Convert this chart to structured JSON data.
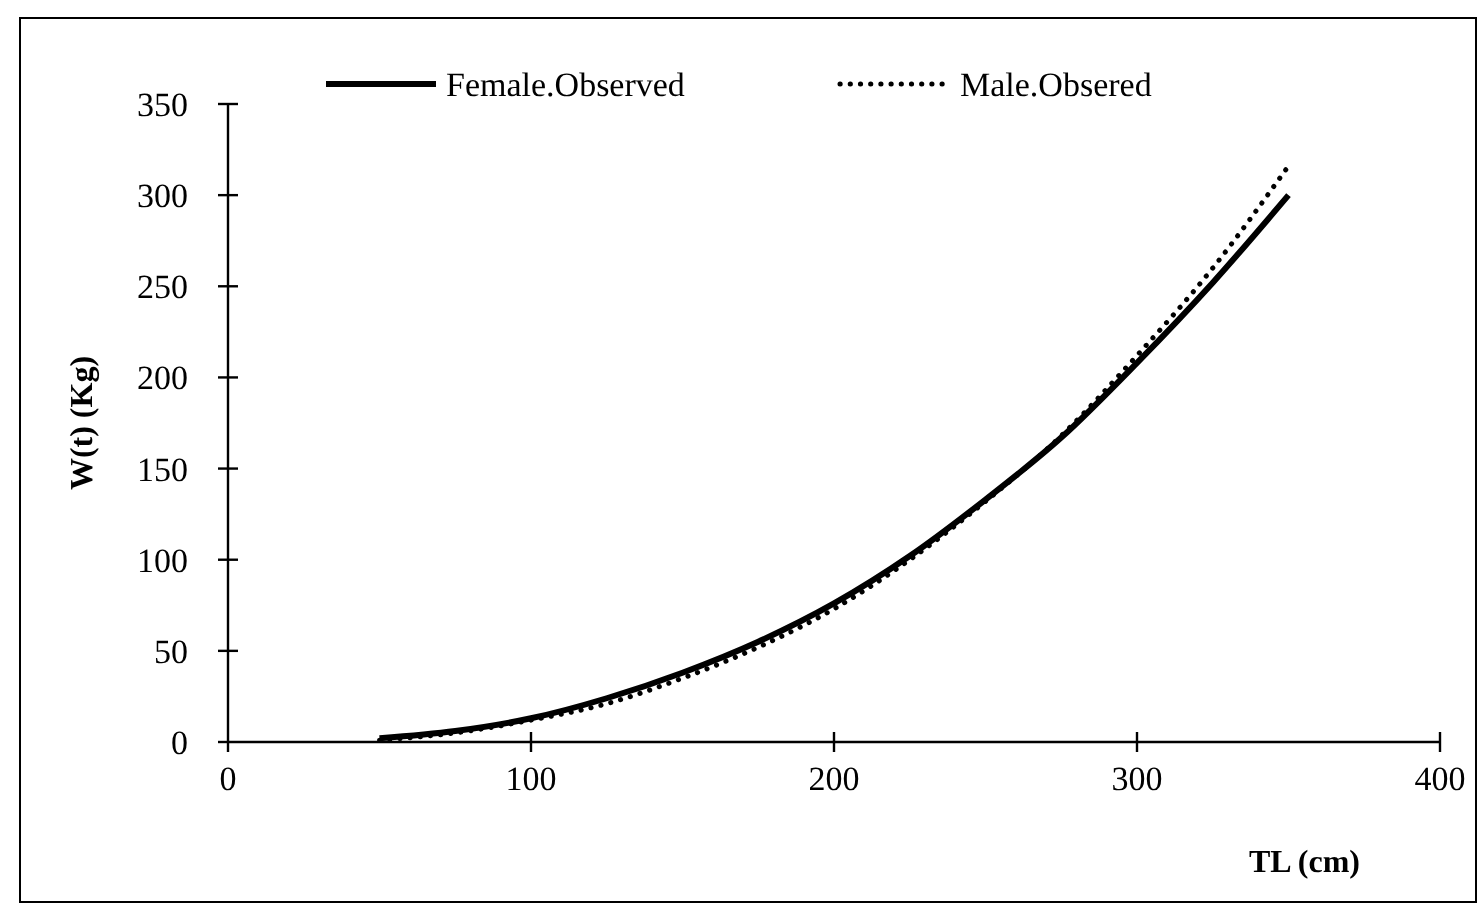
{
  "chart_data": {
    "type": "line",
    "xlabel": "TL (cm)",
    "ylabel": "W(t) (Kg)",
    "x": [
      50,
      75,
      100,
      125,
      150,
      175,
      200,
      225,
      250,
      275,
      300,
      325,
      350
    ],
    "series": [
      {
        "name": "Female.Observed",
        "color": "#000000",
        "line_style": "solid",
        "values": [
          2,
          6,
          13,
          24,
          38,
          55,
          76,
          102,
          133,
          167,
          208,
          252,
          300
        ]
      },
      {
        "name": "Male.Obsered",
        "color": "#000000",
        "line_style": "dotted",
        "values": [
          1,
          5,
          12,
          21,
          35,
          52,
          73,
          100,
          132,
          168,
          212,
          260,
          316
        ]
      }
    ],
    "xlim": [
      0,
      400
    ],
    "xticks": [
      0,
      100,
      200,
      300,
      400
    ],
    "ylim": [
      0,
      350
    ],
    "yticks": [
      0,
      50,
      100,
      150,
      200,
      250,
      300,
      350
    ],
    "grid": false,
    "legend": "top",
    "marker": "none"
  }
}
